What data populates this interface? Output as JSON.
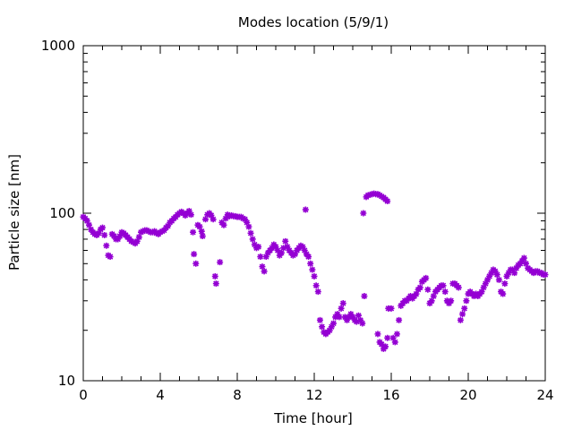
{
  "chart_data": {
    "type": "scatter",
    "title": "Modes location (5/9/1)",
    "xlabel": "Time [hour]",
    "ylabel": "Particle size [nm]",
    "xlim": [
      0,
      24
    ],
    "ylim": [
      10,
      1000
    ],
    "yscale": "log",
    "x_ticks": [
      "0",
      "4",
      "8",
      "12",
      "16",
      "20",
      "24"
    ],
    "y_ticks": [
      "10",
      "100",
      "1000"
    ],
    "grid": false,
    "marker_color": "#9400d3",
    "series": [
      {
        "points": [
          [
            0.0,
            95
          ],
          [
            0.1,
            93
          ],
          [
            0.2,
            90
          ],
          [
            0.3,
            85
          ],
          [
            0.4,
            80
          ],
          [
            0.5,
            77
          ],
          [
            0.6,
            75
          ],
          [
            0.7,
            74
          ],
          [
            0.8,
            76
          ],
          [
            0.9,
            80
          ],
          [
            1.0,
            82
          ],
          [
            1.1,
            74
          ],
          [
            1.2,
            64
          ],
          [
            1.3,
            56
          ],
          [
            1.4,
            55
          ],
          [
            1.5,
            75
          ],
          [
            1.6,
            73
          ],
          [
            1.7,
            70
          ],
          [
            1.8,
            70
          ],
          [
            1.9,
            73
          ],
          [
            2.0,
            77
          ],
          [
            2.1,
            76
          ],
          [
            2.2,
            74
          ],
          [
            2.3,
            72
          ],
          [
            2.4,
            70
          ],
          [
            2.5,
            68
          ],
          [
            2.6,
            67
          ],
          [
            2.7,
            66
          ],
          [
            2.8,
            68
          ],
          [
            2.9,
            72
          ],
          [
            3.0,
            77
          ],
          [
            3.1,
            78
          ],
          [
            3.2,
            79
          ],
          [
            3.3,
            79
          ],
          [
            3.4,
            78
          ],
          [
            3.5,
            77
          ],
          [
            3.6,
            77
          ],
          [
            3.7,
            78
          ],
          [
            3.8,
            76
          ],
          [
            3.9,
            75
          ],
          [
            4.0,
            77
          ],
          [
            4.1,
            78
          ],
          [
            4.2,
            79
          ],
          [
            4.3,
            82
          ],
          [
            4.4,
            84
          ],
          [
            4.5,
            88
          ],
          [
            4.6,
            90
          ],
          [
            4.7,
            93
          ],
          [
            4.8,
            95
          ],
          [
            4.9,
            98
          ],
          [
            5.0,
            100
          ],
          [
            5.1,
            102
          ],
          [
            5.2,
            100
          ],
          [
            5.3,
            97
          ],
          [
            5.4,
            100
          ],
          [
            5.5,
            103
          ],
          [
            5.6,
            98
          ],
          [
            5.7,
            77
          ],
          [
            5.75,
            57
          ],
          [
            5.85,
            50
          ],
          [
            5.95,
            85
          ],
          [
            6.05,
            83
          ],
          [
            6.15,
            78
          ],
          [
            6.2,
            73
          ],
          [
            6.35,
            92
          ],
          [
            6.45,
            98
          ],
          [
            6.55,
            100
          ],
          [
            6.65,
            97
          ],
          [
            6.75,
            92
          ],
          [
            6.85,
            42
          ],
          [
            6.9,
            38
          ],
          [
            7.1,
            51
          ],
          [
            7.2,
            88
          ],
          [
            7.3,
            85
          ],
          [
            7.4,
            93
          ],
          [
            7.5,
            98
          ],
          [
            7.6,
            96
          ],
          [
            7.7,
            97
          ],
          [
            7.8,
            96
          ],
          [
            7.9,
            96
          ],
          [
            8.0,
            95
          ],
          [
            8.1,
            95
          ],
          [
            8.2,
            95
          ],
          [
            8.3,
            93
          ],
          [
            8.4,
            92
          ],
          [
            8.5,
            88
          ],
          [
            8.6,
            83
          ],
          [
            8.7,
            76
          ],
          [
            8.8,
            70
          ],
          [
            8.9,
            65
          ],
          [
            9.0,
            62
          ],
          [
            9.1,
            63
          ],
          [
            9.2,
            55
          ],
          [
            9.3,
            48
          ],
          [
            9.4,
            45
          ],
          [
            9.5,
            55
          ],
          [
            9.6,
            58
          ],
          [
            9.7,
            60
          ],
          [
            9.8,
            62
          ],
          [
            9.9,
            65
          ],
          [
            10.0,
            63
          ],
          [
            10.1,
            60
          ],
          [
            10.2,
            56
          ],
          [
            10.3,
            58
          ],
          [
            10.4,
            62
          ],
          [
            10.5,
            68
          ],
          [
            10.6,
            63
          ],
          [
            10.7,
            60
          ],
          [
            10.8,
            58
          ],
          [
            10.9,
            56
          ],
          [
            11.0,
            57
          ],
          [
            11.1,
            60
          ],
          [
            11.2,
            62
          ],
          [
            11.3,
            64
          ],
          [
            11.4,
            63
          ],
          [
            11.5,
            60
          ],
          [
            11.55,
            105
          ],
          [
            11.6,
            57
          ],
          [
            11.7,
            55
          ],
          [
            11.8,
            50
          ],
          [
            11.9,
            46
          ],
          [
            12.0,
            42
          ],
          [
            12.1,
            37
          ],
          [
            12.2,
            34
          ],
          [
            12.3,
            23
          ],
          [
            12.4,
            21
          ],
          [
            12.5,
            19.5
          ],
          [
            12.6,
            19
          ],
          [
            12.7,
            19.5
          ],
          [
            12.8,
            20
          ],
          [
            12.9,
            21
          ],
          [
            13.0,
            22
          ],
          [
            13.1,
            24
          ],
          [
            13.2,
            25
          ],
          [
            13.3,
            24
          ],
          [
            13.4,
            27
          ],
          [
            13.5,
            29
          ],
          [
            13.6,
            24
          ],
          [
            13.7,
            23
          ],
          [
            13.8,
            24
          ],
          [
            13.9,
            25
          ],
          [
            14.0,
            24
          ],
          [
            14.1,
            23
          ],
          [
            14.2,
            22.5
          ],
          [
            14.3,
            24.5
          ],
          [
            14.4,
            23
          ],
          [
            14.5,
            22
          ],
          [
            14.55,
            100
          ],
          [
            14.6,
            32
          ],
          [
            14.7,
            125
          ],
          [
            14.8,
            128
          ],
          [
            14.9,
            129
          ],
          [
            15.0,
            130
          ],
          [
            15.1,
            131
          ],
          [
            15.2,
            130
          ],
          [
            15.3,
            130
          ],
          [
            15.4,
            128
          ],
          [
            15.5,
            126
          ],
          [
            15.6,
            124
          ],
          [
            15.7,
            121
          ],
          [
            15.8,
            118
          ],
          [
            15.3,
            19
          ],
          [
            15.4,
            17
          ],
          [
            15.5,
            16.5
          ],
          [
            15.6,
            15.5
          ],
          [
            15.7,
            16
          ],
          [
            15.8,
            18
          ],
          [
            15.85,
            27
          ],
          [
            16.0,
            27
          ],
          [
            16.1,
            18
          ],
          [
            16.2,
            17
          ],
          [
            16.3,
            19
          ],
          [
            16.4,
            23
          ],
          [
            16.5,
            28
          ],
          [
            16.6,
            29
          ],
          [
            16.7,
            30
          ],
          [
            16.8,
            30
          ],
          [
            16.9,
            31
          ],
          [
            17.0,
            32
          ],
          [
            17.1,
            31
          ],
          [
            17.2,
            32
          ],
          [
            17.3,
            33
          ],
          [
            17.4,
            35
          ],
          [
            17.5,
            36
          ],
          [
            17.6,
            39
          ],
          [
            17.7,
            40
          ],
          [
            17.8,
            41
          ],
          [
            17.9,
            35
          ],
          [
            18.0,
            29
          ],
          [
            18.1,
            30
          ],
          [
            18.2,
            32
          ],
          [
            18.3,
            34
          ],
          [
            18.4,
            35
          ],
          [
            18.5,
            36
          ],
          [
            18.6,
            37
          ],
          [
            18.7,
            37
          ],
          [
            18.8,
            34
          ],
          [
            18.9,
            30
          ],
          [
            19.0,
            29
          ],
          [
            19.1,
            30
          ],
          [
            19.2,
            38
          ],
          [
            19.3,
            38
          ],
          [
            19.4,
            37
          ],
          [
            19.5,
            36
          ],
          [
            19.6,
            23
          ],
          [
            19.7,
            25
          ],
          [
            19.8,
            27
          ],
          [
            19.9,
            30
          ],
          [
            20.0,
            33
          ],
          [
            20.1,
            34
          ],
          [
            20.2,
            33
          ],
          [
            20.3,
            32
          ],
          [
            20.4,
            33
          ],
          [
            20.5,
            32
          ],
          [
            20.6,
            33
          ],
          [
            20.7,
            34
          ],
          [
            20.8,
            36
          ],
          [
            20.9,
            38
          ],
          [
            21.0,
            40
          ],
          [
            21.1,
            42
          ],
          [
            21.2,
            44
          ],
          [
            21.3,
            46
          ],
          [
            21.4,
            45
          ],
          [
            21.5,
            43
          ],
          [
            21.6,
            40
          ],
          [
            21.7,
            34
          ],
          [
            21.8,
            33
          ],
          [
            21.9,
            38
          ],
          [
            22.0,
            42
          ],
          [
            22.1,
            44
          ],
          [
            22.2,
            46
          ],
          [
            22.3,
            46
          ],
          [
            22.4,
            44
          ],
          [
            22.5,
            47
          ],
          [
            22.6,
            49
          ],
          [
            22.7,
            50
          ],
          [
            22.8,
            52
          ],
          [
            22.9,
            54
          ],
          [
            23.0,
            50
          ],
          [
            23.1,
            47
          ],
          [
            23.2,
            46
          ],
          [
            23.3,
            45
          ],
          [
            23.4,
            44
          ],
          [
            23.5,
            45
          ],
          [
            23.6,
            45
          ],
          [
            23.7,
            44
          ],
          [
            23.8,
            44
          ],
          [
            23.9,
            43
          ],
          [
            24.0,
            43
          ]
        ]
      }
    ]
  }
}
